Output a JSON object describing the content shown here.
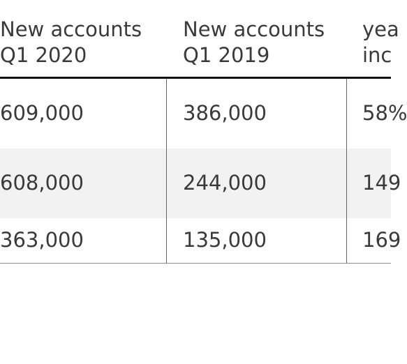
{
  "table": {
    "headers": [
      {
        "line1": "New accounts",
        "line2": "Q1 2020"
      },
      {
        "line1": "New accounts",
        "line2": "Q1 2019"
      },
      {
        "line1": "yea",
        "line2": "inc"
      }
    ],
    "rows": [
      [
        "609,000",
        "386,000",
        "58%"
      ],
      [
        "608,000",
        "244,000",
        "149"
      ],
      [
        "363,000",
        "135,000",
        "169"
      ]
    ]
  },
  "colors": {
    "text": "#3a3a3a",
    "stripe": "#f2f2f2",
    "header_rule": "#111111",
    "grid": "#666666"
  }
}
